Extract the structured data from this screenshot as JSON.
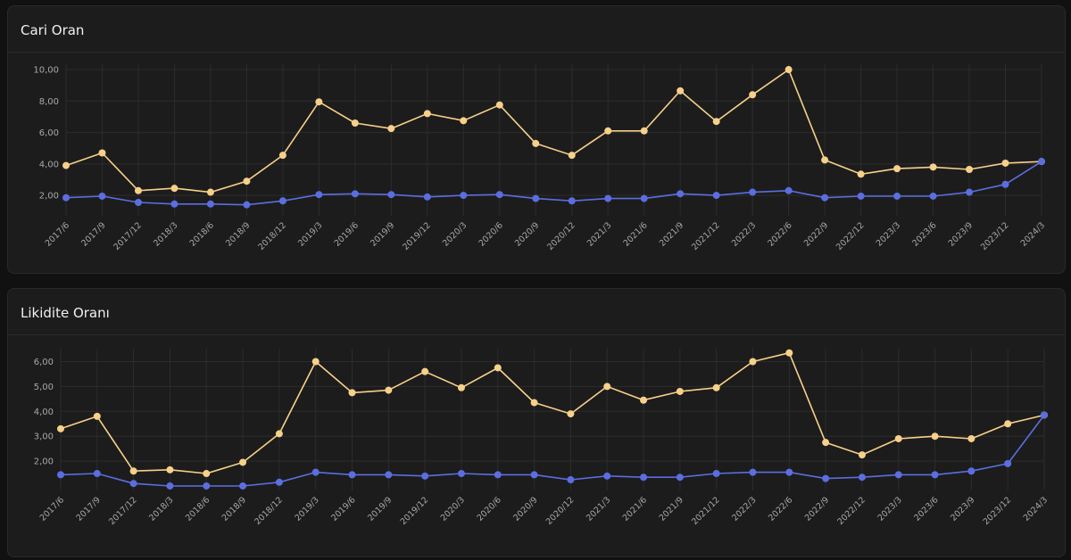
{
  "chart_data": [
    {
      "type": "line",
      "title": "Cari Oran",
      "categories": [
        "2017/6",
        "2017/9",
        "2017/12",
        "2018/3",
        "2018/6",
        "2018/9",
        "2018/12",
        "2019/3",
        "2019/6",
        "2019/9",
        "2019/12",
        "2020/3",
        "2020/6",
        "2020/9",
        "2020/12",
        "2021/3",
        "2021/6",
        "2021/9",
        "2021/12",
        "2022/3",
        "2022/6",
        "2022/9",
        "2022/12",
        "2023/3",
        "2023/6",
        "2023/9",
        "2023/12",
        "2024/3"
      ],
      "y_ticks": [
        "2,00",
        "4,00",
        "6,00",
        "8,00",
        "10,00"
      ],
      "ylim": [
        0.7,
        10.4
      ],
      "grid": true,
      "series": [
        {
          "name": "series-yellow",
          "color": "#f7d08a",
          "values": [
            3.9,
            4.7,
            2.3,
            2.45,
            2.2,
            2.9,
            4.55,
            7.95,
            6.6,
            6.25,
            7.2,
            6.75,
            7.75,
            5.3,
            4.55,
            6.1,
            6.1,
            8.65,
            6.7,
            8.4,
            10.0,
            4.25,
            3.35,
            3.7,
            3.8,
            3.65,
            4.05,
            4.15
          ]
        },
        {
          "name": "series-blue",
          "color": "#5b6ee1",
          "values": [
            1.85,
            1.95,
            1.55,
            1.45,
            1.45,
            1.4,
            1.65,
            2.05,
            2.1,
            2.05,
            1.9,
            2.0,
            2.05,
            1.8,
            1.65,
            1.8,
            1.8,
            2.1,
            2.0,
            2.2,
            2.3,
            1.85,
            1.95,
            1.95,
            1.95,
            2.2,
            2.7,
            4.15
          ]
        }
      ]
    },
    {
      "type": "line",
      "title": "Likidite Oranı",
      "categories": [
        "2017/6",
        "2017/9",
        "2017/12",
        "2018/3",
        "2018/6",
        "2018/9",
        "2018/12",
        "2019/3",
        "2019/6",
        "2019/9",
        "2019/12",
        "2020/3",
        "2020/6",
        "2020/9",
        "2020/12",
        "2021/3",
        "2021/6",
        "2021/9",
        "2021/12",
        "2022/3",
        "2022/6",
        "2022/9",
        "2022/12",
        "2023/3",
        "2023/6",
        "2023/9",
        "2023/12",
        "2024/3"
      ],
      "y_ticks": [
        "2,00",
        "3,00",
        "4,00",
        "5,00",
        "6,00"
      ],
      "ylim": [
        0.82,
        6.52
      ],
      "grid": true,
      "series": [
        {
          "name": "series-yellow",
          "color": "#f7d08a",
          "values": [
            3.3,
            3.8,
            1.6,
            1.65,
            1.5,
            1.95,
            3.1,
            6.0,
            4.75,
            4.85,
            5.6,
            4.95,
            5.75,
            4.35,
            3.9,
            5.0,
            4.45,
            4.8,
            4.95,
            6.0,
            6.35,
            2.75,
            2.25,
            2.9,
            3.0,
            2.9,
            3.5,
            3.85
          ]
        },
        {
          "name": "series-blue",
          "color": "#5b6ee1",
          "values": [
            1.45,
            1.5,
            1.1,
            1.0,
            1.0,
            1.0,
            1.15,
            1.55,
            1.45,
            1.45,
            1.4,
            1.5,
            1.45,
            1.45,
            1.25,
            1.4,
            1.35,
            1.35,
            1.5,
            1.55,
            1.55,
            1.3,
            1.35,
            1.45,
            1.45,
            1.6,
            1.9,
            3.85
          ]
        }
      ]
    }
  ]
}
